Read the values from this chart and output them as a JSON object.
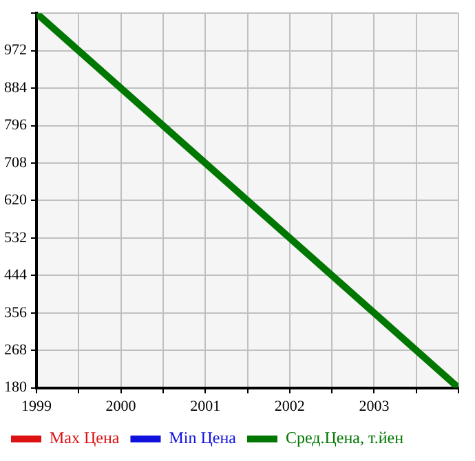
{
  "chart_data": {
    "type": "line",
    "x": [
      1999,
      2004
    ],
    "series": [
      {
        "name": "Max Цена",
        "color": "#dd1111",
        "values": [
          null,
          null
        ]
      },
      {
        "name": "Min Цена",
        "color": "#1111dd",
        "values": [
          null,
          null
        ]
      },
      {
        "name": "Сред.Цена, т.йен",
        "color": "#007700",
        "values": [
          1060,
          180
        ]
      }
    ],
    "xlim": [
      1999,
      2004
    ],
    "xticks": [
      1999,
      {
        "value": 1999.5,
        "label": null
      },
      2000,
      {
        "value": 2000.5,
        "label": null
      },
      2001,
      {
        "value": 2001.5,
        "label": null
      },
      2002,
      {
        "value": 2002.5,
        "label": null
      },
      2003,
      {
        "value": 2003.5,
        "label": null
      },
      {
        "value": 2004,
        "label": null
      }
    ],
    "ylim": [
      180,
      1060
    ],
    "yticks": [
      180,
      268,
      356,
      444,
      532,
      620,
      708,
      796,
      884,
      972,
      {
        "value": 1060,
        "label": null
      }
    ],
    "grid": true,
    "legend": "bottom",
    "marker": "none",
    "line_style": "solid"
  }
}
